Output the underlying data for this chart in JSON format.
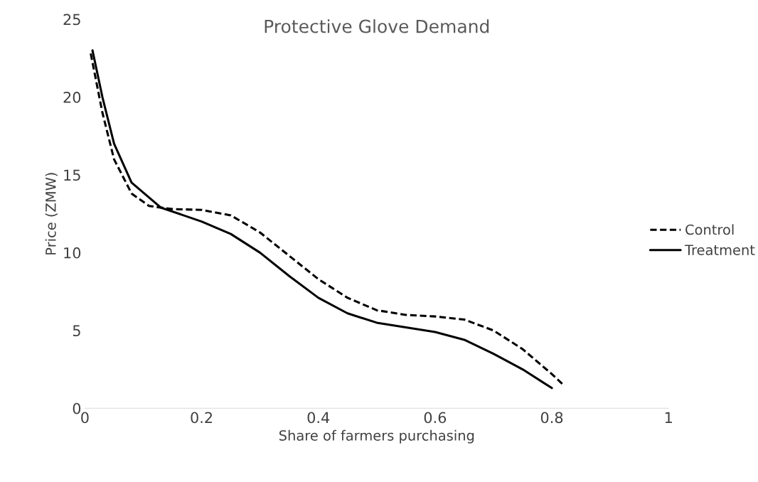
{
  "chart_data": {
    "type": "line",
    "title": "Protective Glove Demand",
    "xlabel": "Share of farmers purchasing",
    "ylabel": "Price (ZMW)",
    "xlim": [
      0,
      1
    ],
    "xticks": [
      0,
      0.2,
      0.4,
      0.6,
      0.8,
      1
    ],
    "ylim": [
      0,
      25
    ],
    "yticks": [
      0,
      5,
      10,
      15,
      20,
      25
    ],
    "grid": false,
    "legend": "right",
    "series": [
      {
        "name": "Control",
        "color": "#000000",
        "line_style": "dashed",
        "x": [
          0.01,
          0.03,
          0.05,
          0.08,
          0.11,
          0.15,
          0.2,
          0.25,
          0.3,
          0.35,
          0.4,
          0.45,
          0.5,
          0.55,
          0.6,
          0.65,
          0.7,
          0.75,
          0.8,
          0.82
        ],
        "values": [
          22.8,
          19,
          16,
          13.8,
          13,
          12.8,
          12.75,
          12.4,
          11.3,
          9.8,
          8.3,
          7.1,
          6.3,
          6,
          5.9,
          5.7,
          5,
          3.8,
          2.2,
          1.5
        ]
      },
      {
        "name": "Treatment",
        "color": "#000000",
        "line_style": "solid",
        "x": [
          0.013,
          0.03,
          0.05,
          0.08,
          0.13,
          0.2,
          0.25,
          0.3,
          0.35,
          0.4,
          0.45,
          0.5,
          0.55,
          0.6,
          0.65,
          0.7,
          0.75,
          0.8
        ],
        "values": [
          23,
          20,
          17,
          14.5,
          12.9,
          12,
          11.2,
          10,
          8.5,
          7.1,
          6.1,
          5.5,
          5.2,
          4.9,
          4.4,
          3.5,
          2.5,
          1.3
        ]
      }
    ]
  }
}
